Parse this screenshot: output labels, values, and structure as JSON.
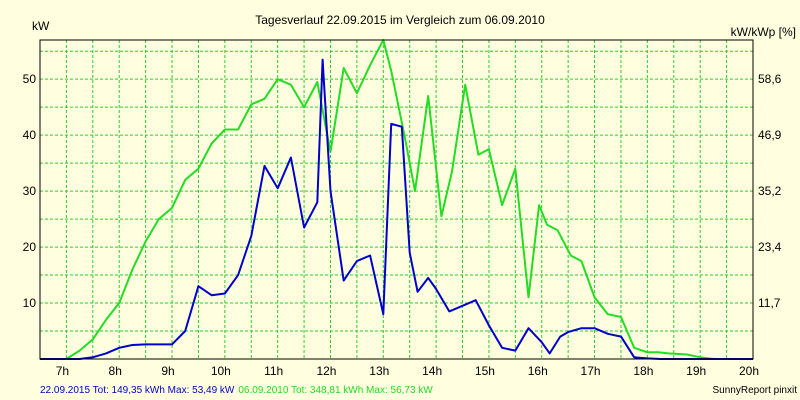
{
  "colors": {
    "background": "#ffffe0",
    "grid": "#2ecc2e",
    "series_2015": "#0000cc",
    "series_2010": "#22dd22",
    "axis": "#000000"
  },
  "chart_data": {
    "type": "line",
    "title": "Tagesverlauf 22.09.2015 im Vergleich zum 06.09.2010",
    "y_left_unit": "kW",
    "y_right_unit": "kW/kWp [%]",
    "x_range": [
      6.5,
      20.0
    ],
    "y_range": [
      0,
      57
    ],
    "x_ticks": [
      {
        "value": 7,
        "label": "7h"
      },
      {
        "value": 8,
        "label": "8h"
      },
      {
        "value": 9,
        "label": "9h"
      },
      {
        "value": 10,
        "label": "10h"
      },
      {
        "value": 11,
        "label": "11h"
      },
      {
        "value": 12,
        "label": "12h"
      },
      {
        "value": 13,
        "label": "13h"
      },
      {
        "value": 14,
        "label": "14h"
      },
      {
        "value": 15,
        "label": "15h"
      },
      {
        "value": 16,
        "label": "16h"
      },
      {
        "value": 17,
        "label": "17h"
      },
      {
        "value": 18,
        "label": "18h"
      },
      {
        "value": 19,
        "label": "19h"
      },
      {
        "value": 20,
        "label": "20h"
      }
    ],
    "y_left_ticks": [
      {
        "value": 10,
        "label": "10"
      },
      {
        "value": 20,
        "label": "20"
      },
      {
        "value": 30,
        "label": "30"
      },
      {
        "value": 40,
        "label": "40"
      },
      {
        "value": 50,
        "label": "50"
      }
    ],
    "y_right_ticks": [
      {
        "value": 10,
        "label": "11,7"
      },
      {
        "value": 20,
        "label": "23,4"
      },
      {
        "value": 30,
        "label": "35,2"
      },
      {
        "value": 40,
        "label": "46,9"
      },
      {
        "value": 50,
        "label": "58,6"
      }
    ],
    "grid": true,
    "series": [
      {
        "name": "22.09.2015",
        "color": "#0000cc",
        "x": [
          6.5,
          7.0,
          7.25,
          7.5,
          7.75,
          8.0,
          8.25,
          8.5,
          8.75,
          9.0,
          9.25,
          9.5,
          9.75,
          10.0,
          10.25,
          10.5,
          10.75,
          11.0,
          11.25,
          11.5,
          11.75,
          11.85,
          12.0,
          12.25,
          12.5,
          12.75,
          13.0,
          13.15,
          13.35,
          13.5,
          13.65,
          13.85,
          14.0,
          14.25,
          14.5,
          14.75,
          15.0,
          15.25,
          15.5,
          15.75,
          16.0,
          16.15,
          16.35,
          16.5,
          16.75,
          17.0,
          17.25,
          17.5,
          17.75,
          18.0,
          18.25,
          18.4,
          18.75,
          19.0,
          19.25,
          19.5,
          19.75,
          20.0
        ],
        "y": [
          0,
          0,
          0,
          0.3,
          1.0,
          2.0,
          2.5,
          2.6,
          2.6,
          2.6,
          5.0,
          13.0,
          11.4,
          11.7,
          15.0,
          22.0,
          34.5,
          30.5,
          36.0,
          23.5,
          28.0,
          53.5,
          30.0,
          14.0,
          17.5,
          18.5,
          8.0,
          42.0,
          41.5,
          19.0,
          12.0,
          14.5,
          12.5,
          8.5,
          9.5,
          10.5,
          6.0,
          2.0,
          1.5,
          5.5,
          3.0,
          1.0,
          4.0,
          4.8,
          5.5,
          5.5,
          4.5,
          4.0,
          0.3,
          0.1,
          0,
          0,
          0,
          0,
          0,
          0,
          0,
          0
        ]
      },
      {
        "name": "06.09.2010",
        "color": "#22dd22",
        "x": [
          6.5,
          7.0,
          7.25,
          7.5,
          7.75,
          8.0,
          8.25,
          8.5,
          8.75,
          9.0,
          9.25,
          9.5,
          9.75,
          10.0,
          10.25,
          10.5,
          10.75,
          11.0,
          11.25,
          11.5,
          11.75,
          12.0,
          12.25,
          12.5,
          12.75,
          13.0,
          13.15,
          13.4,
          13.6,
          13.85,
          14.1,
          14.3,
          14.55,
          14.8,
          15.0,
          15.25,
          15.5,
          15.75,
          15.95,
          16.1,
          16.3,
          16.55,
          16.75,
          17.0,
          17.25,
          17.5,
          17.75,
          18.0,
          18.2,
          18.4,
          18.75,
          19.0,
          19.25,
          19.5,
          19.75,
          20.0
        ],
        "y": [
          0,
          0,
          1.5,
          3.5,
          7.0,
          10.0,
          16.0,
          21.0,
          25.0,
          27.0,
          32.0,
          34.0,
          38.5,
          41.0,
          41.0,
          45.5,
          46.5,
          50.0,
          49.0,
          45.0,
          49.5,
          37.0,
          52.0,
          47.5,
          52.5,
          57.0,
          51.5,
          40.0,
          30.0,
          47.0,
          25.5,
          33.5,
          49.0,
          36.5,
          37.5,
          27.5,
          34.0,
          11.0,
          27.5,
          24.0,
          23.0,
          18.5,
          17.5,
          11.0,
          8.0,
          7.5,
          2.0,
          1.2,
          1.2,
          1.0,
          0.8,
          0.3,
          0,
          0,
          0,
          0
        ]
      }
    ]
  },
  "footer": {
    "series_2015_summary": "22.09.2015 Tot: 149,35 kWh Max: 53,49 kW",
    "series_2010_summary": "06.09.2010 Tot: 348,81 kWh Max: 56,73 kW",
    "credit": "SunnyReport pinxit"
  }
}
